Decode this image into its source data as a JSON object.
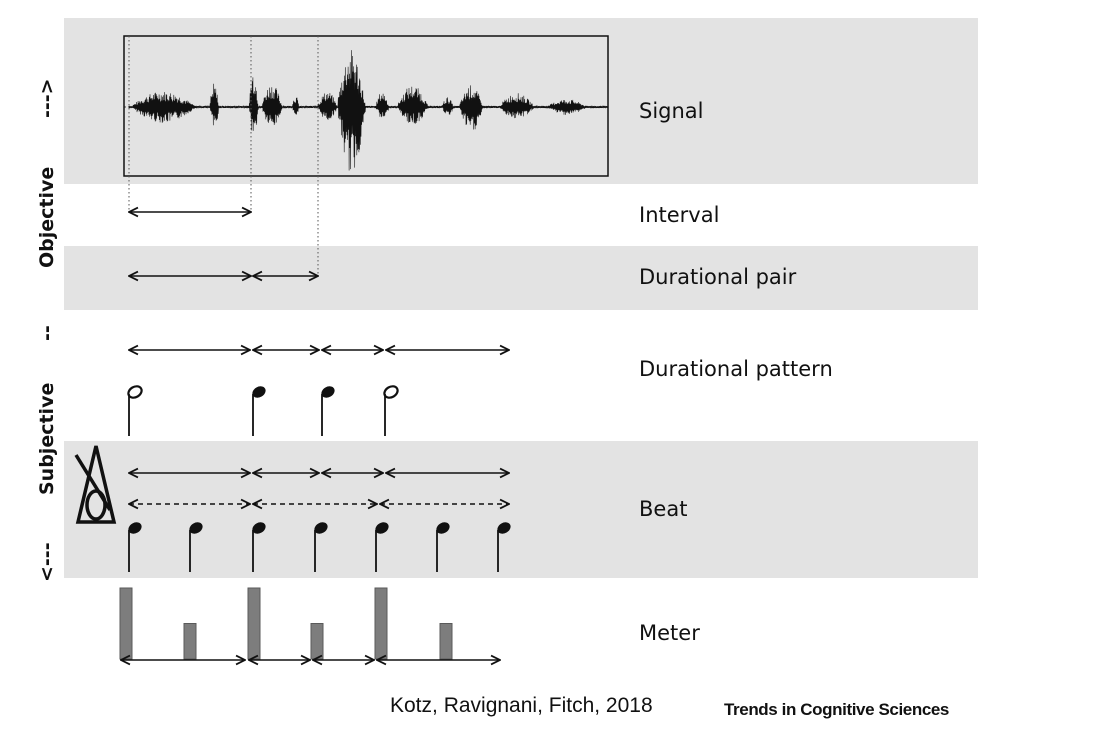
{
  "rows": {
    "signal": "Signal",
    "interval": "Interval",
    "durational_pair": "Durational pair",
    "durational_pattern": "Durational pattern",
    "beat": "Beat",
    "meter": "Meter"
  },
  "axis": {
    "top_arrow": "--->",
    "objective": "Objective",
    "dashes": "--",
    "subjective": "Subjective",
    "bottom_arrow": "<---"
  },
  "footer": {
    "citation": "Kotz, Ravignani, Fitch, 2018",
    "journal": "Trends in Cognitive Sciences"
  },
  "colors": {
    "band": "#e3e3e3",
    "ink": "#111111",
    "meter_bar": "#7d7d7d"
  },
  "icons": {
    "metronome": "metronome-icon",
    "half_note": "half-note-icon",
    "quarter_note": "quarter-note-icon"
  },
  "meter_accent_levels": [
    1,
    0.5,
    1,
    0.5,
    1,
    0.5
  ]
}
